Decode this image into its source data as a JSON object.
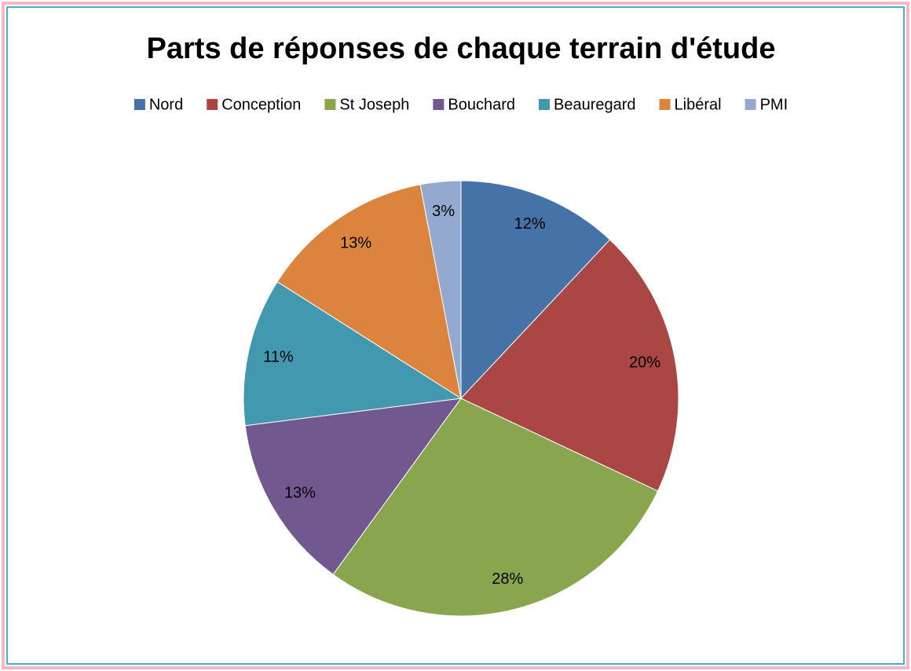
{
  "chart_data": {
    "type": "pie",
    "title": "Parts de réponses de chaque terrain d'étude",
    "categories": [
      "Nord",
      "Conception",
      "St Joseph",
      "Bouchard",
      "Beauregard",
      "Libéral",
      "PMI"
    ],
    "values": [
      12,
      20,
      28,
      13,
      11,
      13,
      3
    ],
    "value_labels": [
      "12%",
      "20%",
      "28%",
      "13%",
      "11%",
      "13%",
      "3%"
    ],
    "colors": [
      "#4572a7",
      "#aa4643",
      "#89a54e",
      "#71588f",
      "#4198af",
      "#db843d",
      "#93a9cf"
    ],
    "legend": "top"
  }
}
